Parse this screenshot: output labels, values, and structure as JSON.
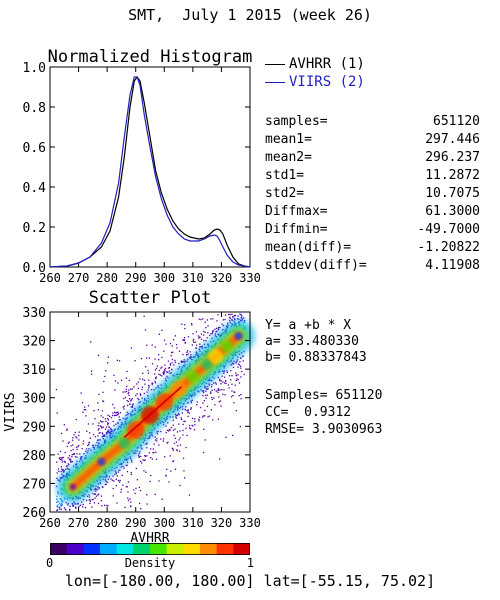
{
  "header": {
    "title": "SMT,  July 1 2015 (week 26)"
  },
  "colors": {
    "avhrr": "#000000",
    "viirs": "#1f1fbf",
    "fit_line": "#d00000",
    "background": "#ffffff"
  },
  "legend": [
    {
      "label": "AVHRR (1)",
      "color": "#000000"
    },
    {
      "label": "VIIRS (2)",
      "color": "#1f1fbf"
    }
  ],
  "stats": [
    {
      "label": "samples=",
      "value": "651120"
    },
    {
      "label": "mean1=",
      "value": "297.446"
    },
    {
      "label": "mean2=",
      "value": "296.237"
    },
    {
      "label": "std1=",
      "value": "11.2872"
    },
    {
      "label": "std2=",
      "value": "10.7075"
    },
    {
      "label": "Diffmax=",
      "value": "61.3000"
    },
    {
      "label": "Diffmin=",
      "value": "-49.7000"
    },
    {
      "label": "mean(diff)=",
      "value": "-1.20822"
    },
    {
      "label": "stddev(diff)=",
      "value": "4.11908"
    }
  ],
  "fit": {
    "equation": "Y= a +b * X",
    "a": "a= 33.480330",
    "b": "b= 0.88337843",
    "samples": "Samples= 651120",
    "cc": "CC=  0.9312",
    "rmse": "RMSE= 3.9030963"
  },
  "colorbar": {
    "label": "Density",
    "min_label": "0",
    "max_label": "1",
    "colors": [
      "#3a0064",
      "#4b00c8",
      "#0032ff",
      "#00aaff",
      "#00e6e6",
      "#00d26e",
      "#46e600",
      "#c8f000",
      "#ffdc00",
      "#ff8c00",
      "#ff3200",
      "#d20000"
    ]
  },
  "domain": {
    "text": "lon=[-180.00, 180.00] lat=[-55.15, 75.02]"
  },
  "chart_data": [
    {
      "type": "line",
      "title": "Normalized Histogram",
      "xlim": [
        260,
        330
      ],
      "ylim": [
        0.0,
        1.0
      ],
      "x_ticks": [
        260,
        270,
        280,
        290,
        300,
        310,
        320,
        330
      ],
      "y_ticks": [
        "0.0",
        "0.2",
        "0.4",
        "0.6",
        "0.8",
        "1.0"
      ],
      "series": [
        {
          "name": "AVHRR (1)",
          "color": "#000000",
          "x": [
            260,
            266,
            270,
            274,
            278,
            281,
            284,
            286,
            288,
            289.5,
            290.5,
            291.5,
            293,
            295,
            297,
            299,
            301,
            303,
            305,
            307,
            309,
            312,
            314,
            316,
            317.5,
            318.5,
            319.5,
            320.5,
            322,
            324,
            326,
            328,
            330
          ],
          "y": [
            0.0,
            0.005,
            0.02,
            0.05,
            0.1,
            0.18,
            0.35,
            0.55,
            0.8,
            0.93,
            0.95,
            0.93,
            0.82,
            0.65,
            0.48,
            0.37,
            0.29,
            0.23,
            0.19,
            0.165,
            0.15,
            0.14,
            0.145,
            0.165,
            0.185,
            0.19,
            0.185,
            0.165,
            0.11,
            0.05,
            0.015,
            0.005,
            0.0
          ]
        },
        {
          "name": "VIIRS (2)",
          "color": "#1f1fbf",
          "x": [
            260,
            266,
            270,
            274,
            278,
            281,
            284,
            286,
            288,
            289.5,
            290.5,
            291.5,
            293,
            295,
            297,
            299,
            301,
            303,
            305,
            307,
            309,
            312,
            314,
            316,
            317.5,
            318.5,
            319.5,
            320.5,
            322,
            324,
            326,
            328,
            330
          ],
          "y": [
            0.0,
            0.005,
            0.02,
            0.05,
            0.12,
            0.22,
            0.42,
            0.65,
            0.86,
            0.95,
            0.95,
            0.91,
            0.76,
            0.6,
            0.45,
            0.34,
            0.26,
            0.2,
            0.165,
            0.14,
            0.13,
            0.13,
            0.14,
            0.155,
            0.16,
            0.155,
            0.13,
            0.1,
            0.06,
            0.025,
            0.01,
            0.005,
            0.0
          ]
        }
      ]
    },
    {
      "type": "heatmap",
      "title": "Scatter Plot",
      "xlabel": "AVHRR",
      "ylabel": "VIIRS",
      "xlim": [
        260,
        330
      ],
      "ylim": [
        260,
        330
      ],
      "x_ticks": [
        260,
        270,
        280,
        290,
        300,
        310,
        320,
        330
      ],
      "y_ticks": [
        260,
        270,
        280,
        290,
        300,
        310,
        320,
        330
      ],
      "colorbar_label": "Density",
      "colorbar_range": [
        0,
        1
      ],
      "fit": {
        "a": 33.48033,
        "b": 0.88337843
      },
      "density_ridge": {
        "x": [
          268,
          278,
          286,
          290,
          295,
          300,
          305,
          310,
          315,
          318,
          322,
          326
        ],
        "y": [
          268.7,
          277.6,
          284.1,
          288.7,
          293.9,
          298.5,
          303.0,
          307.4,
          311.7,
          314.4,
          318.1,
          321.6
        ],
        "peak_density": [
          0.05,
          0.18,
          0.45,
          0.95,
          1.0,
          0.95,
          0.85,
          0.55,
          0.45,
          0.7,
          0.5,
          0.2
        ]
      }
    }
  ]
}
